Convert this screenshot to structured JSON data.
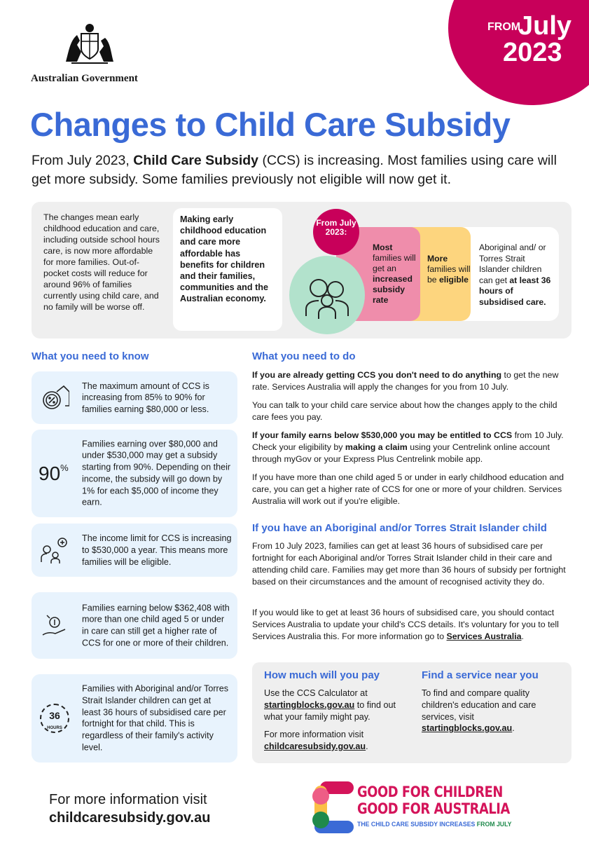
{
  "header": {
    "government": "Australian Government",
    "badge_from": "FROM",
    "badge_month": "July",
    "badge_year": "2023"
  },
  "title": "Changes to Child Care Subsidy",
  "intro": {
    "t1": "From July 2023, ",
    "b1": "Child Care Subsidy",
    "t2": " (CCS) is increasing. Most families using care will get more subsidy. Some families previously not eligible will now get it."
  },
  "summary": {
    "left": "The changes mean early childhood education and care, including outside school hours care, is now more affordable for more families. Out-of-pocket costs will reduce for around 96% of families currently using child care, and no family will be worse off.",
    "benefits": "Making early childhood education and care more affordable has benefits for children and their families, communities and the Australian economy.",
    "from_label": "From July 2023:",
    "pink": {
      "b1": "Most",
      "t1": " families will get an ",
      "b2": "increased subsidy rate"
    },
    "yellow": {
      "b1": "More",
      "t1": " families will be ",
      "b2": "eligible"
    },
    "white": {
      "t1": "Aboriginal and/ or Torres Strait Islander children can get ",
      "b1": "at least 36 hours of subsidised care."
    }
  },
  "know": {
    "heading": "What you need to know",
    "cards": [
      {
        "icon": "percent-house-icon",
        "text": "The maximum amount of CCS is increasing from 85% to 90% for families earning $80,000 or less."
      },
      {
        "icon": "ninety-percent",
        "big": "90",
        "pct": "%",
        "text": "Families earning over $80,000 and under $530,000 may get a subsidy starting from 90%. Depending on their income, the subsidy will go down by 1% for each $5,000 of income they earn."
      },
      {
        "icon": "family-plus-icon",
        "text": "The income limit for CCS is increasing to $530,000 a year. This means more families will be eligible."
      },
      {
        "icon": "hand-coin-icon",
        "text": "Families earning below $362,408 with more than one child aged 5 or under in care can still get a higher rate of CCS for one or more of their children."
      },
      {
        "icon": "36-hours-icon",
        "hours": "36",
        "hours_label": "HOURS",
        "text": "Families with Aboriginal and/or Torres Strait Islander children can get at least 36 hours of subsidised care per fortnight for that child. This is regardless of their family's activity level."
      }
    ]
  },
  "todo": {
    "heading": "What you need to do",
    "p1": {
      "b1": "If you are already getting CCS you don't need to do anything",
      "t1": " to get the new rate. Services Australia will apply the changes for you from 10 July."
    },
    "p2": "You can talk to your child care service about how the changes apply to the child care fees you pay.",
    "p3": {
      "b1": "If your family earns below $530,000 you may be entitled to CCS",
      "t1": " from 10 July. Check your eligibility by ",
      "b2": "making a claim",
      "t2": " using your Centrelink online account through myGov or your Express Plus Centrelink mobile app."
    },
    "p4": "If you have more than one child aged 5 or under in early childhood education and care, you can get a higher rate of CCS for one or more of your children. Services Australia will work out if you're eligible."
  },
  "atsi": {
    "heading": "If you have an Aboriginal and/or Torres Strait Islander child",
    "p1": "From 10 July 2023, families can get at least 36 hours of subsidised care per fortnight for each Aboriginal and/or Torres Strait Islander child in their care and attending child care. Families may get more than 36 hours of subsidy per fortnight based on their circumstances and the amount of recognised activity they do.",
    "p2": "If you would like to get at least 36 hours of subsidised care, you should contact Services Australia to update your child's CCS details. It's voluntary for you to tell Services Australia this. For more information go to ",
    "link": "Services Australia",
    "end": "."
  },
  "pay": {
    "heading": "How much will you pay",
    "t1": "Use the CCS Calculator at ",
    "link1": "startingblocks.gov.au",
    "t2": " to find out what your family might pay.",
    "t3": "For more information visit ",
    "link2": "childcaresubsidy.gov.au",
    "t4": "."
  },
  "find": {
    "heading": "Find a service near you",
    "t1": "To find and compare quality children's education and care services, visit ",
    "link": "startingblocks.gov.au",
    "t2": "."
  },
  "footer": {
    "line1": "For more information visit",
    "line2": "childcaresubsidy.gov.au",
    "logo1": "GOOD FOR CHILDREN",
    "logo2": "GOOD FOR AUSTRALIA",
    "logo3a": "THE CHILD CARE SUBSIDY INCREASES ",
    "logo3b": "FROM JULY"
  }
}
